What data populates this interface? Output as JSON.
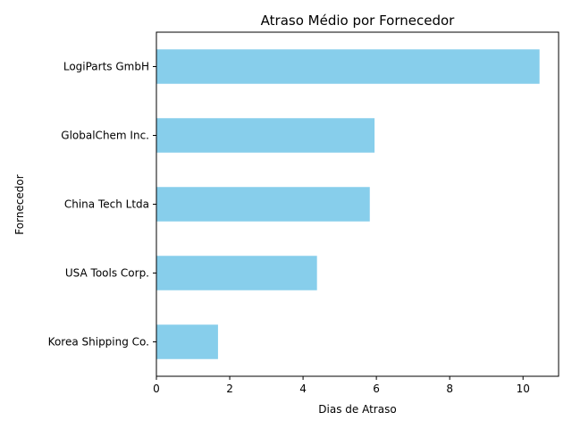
{
  "chart_data": {
    "type": "bar",
    "orientation": "horizontal",
    "title": "Atraso Médio por Fornecedor",
    "xlabel": "Dias de Atraso",
    "ylabel": "Fornecedor",
    "categories": [
      "LogiParts GmbH",
      "GlobalChem Inc.",
      "China Tech Ltda",
      "USA Tools Corp.",
      "Korea Shipping Co."
    ],
    "values": [
      10.45,
      5.95,
      5.82,
      4.38,
      1.68
    ],
    "xlim": [
      0,
      10.97
    ],
    "xticks": [
      0,
      2,
      4,
      6,
      8,
      10
    ],
    "grid": false,
    "bar_color": "#87CEEB"
  }
}
